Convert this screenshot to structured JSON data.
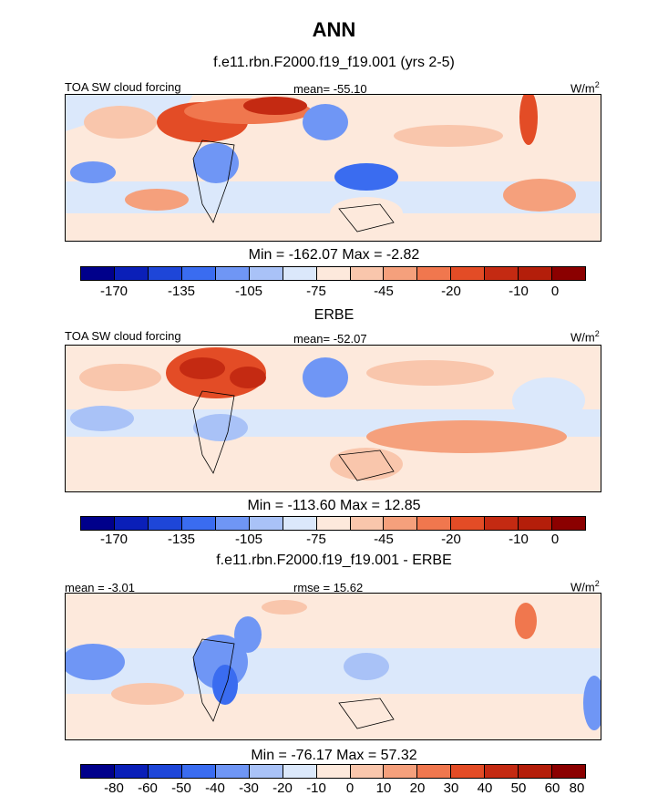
{
  "title": "ANN",
  "panels": [
    {
      "subtitle": "f.e11.rbn.F2000.f19_f19.001 (yrs 2-5)",
      "left_label": "TOA SW cloud forcing",
      "center_label": "mean= -55.10",
      "units": "W/m",
      "units_sup": "2",
      "minmax": "Min = -162.07 Max =  -2.82"
    },
    {
      "subtitle": "ERBE",
      "left_label": "TOA SW cloud forcing",
      "center_label": "mean= -52.07",
      "units": "W/m",
      "units_sup": "2",
      "minmax": "Min = -113.60 Max =  12.85"
    },
    {
      "subtitle": "f.e11.rbn.F2000.f19_f19.001 - ERBE",
      "left_label": "mean =  -3.01",
      "center_label": "rmse =  15.62",
      "units": "W/m",
      "units_sup": "2",
      "minmax": "Min = -76.17 Max =  57.32"
    }
  ],
  "colorbar_colors": [
    "#00008b",
    "#0a1fb8",
    "#1e46d8",
    "#3a6cf0",
    "#6f96f5",
    "#a9c2f7",
    "#dbe8fb",
    "#fde9dc",
    "#f9c6ac",
    "#f5a07c",
    "#f0774e",
    "#e34c26",
    "#c42a12",
    "#b41e0a",
    "#8b0000"
  ],
  "colorbar_ticks_forcing": [
    "-170",
    "-135",
    "-105",
    "-75",
    "-45",
    "-20",
    "-10",
    "0"
  ],
  "colorbar_ticks_diff": [
    "-80",
    "-60",
    "-50",
    "-40",
    "-30",
    "-20",
    "-10",
    "0",
    "10",
    "20",
    "30",
    "40",
    "50",
    "60",
    "80"
  ]
}
